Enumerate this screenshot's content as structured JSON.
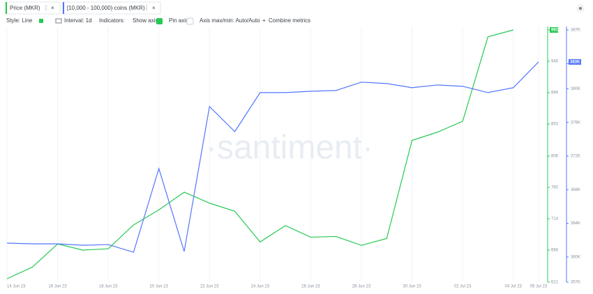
{
  "tabs": [
    "Price (MKR)",
    "[10,000 - 100,000) coins (MKR)"
  ],
  "toolbar": {
    "style": "Style: Line",
    "interval": "Interval: 1d",
    "indicators": "Indicators:",
    "show_axis": "Show axis",
    "pin_axis": "Pin axis",
    "axis_minmax": "Axis max/min: Auto/Auto",
    "combine": "Combine metrics"
  },
  "chart_data": {
    "type": "line",
    "watermark": "·santiment·",
    "categories": [
      "14 Jun 23",
      null,
      "16 Jun 23",
      null,
      "18 Jun 23",
      null,
      "20 Jun 23",
      null,
      "22 Jun 23",
      null,
      "24 Jun 23",
      null,
      "26 Jun 23",
      null,
      "28 Jun 23",
      null,
      "30 Jun 23",
      null,
      "02 Jul 23",
      null,
      "04 Jul 23",
      "05 Jul 23"
    ],
    "series": [
      {
        "name": "Price (MKR)",
        "color": "#26c953",
        "last_label": "991",
        "values": [
          626,
          643,
          677,
          668,
          670,
          705,
          727,
          753,
          737,
          725,
          680,
          704,
          687,
          688,
          675,
          685,
          829,
          841,
          857,
          981,
          991,
          null
        ]
      },
      {
        "name": "[10,000 - 100,000) coins (MKR)",
        "color": "#5275ff",
        "axis": "y2",
        "last_label": "383K",
        "values": [
          361640,
          361560,
          361560,
          361390,
          361470,
          360560,
          370510,
          360650,
          377890,
          374910,
          379550,
          379550,
          379710,
          379800,
          380790,
          380630,
          380130,
          380460,
          380300,
          379550,
          380130,
          383200
        ]
      }
    ],
    "ylim": [
      621,
      991
    ],
    "yticks": [
      621,
      668,
      714,
      760,
      806,
      853,
      899,
      945,
      991
    ],
    "y2lim": [
      357000,
      387000
    ],
    "y2ticks": [
      {
        "value": 357000,
        "label": "357K"
      },
      {
        "value": 360000,
        "label": "360K"
      },
      {
        "value": 364000,
        "label": "364K"
      },
      {
        "value": 368000,
        "label": "368K"
      },
      {
        "value": 372000,
        "label": "372K"
      },
      {
        "value": 376000,
        "label": "376K"
      },
      {
        "value": 380000,
        "label": "380K"
      },
      {
        "value": 383000,
        "label": "383K"
      },
      {
        "value": 387000,
        "label": "387K"
      }
    ],
    "grid": true
  }
}
